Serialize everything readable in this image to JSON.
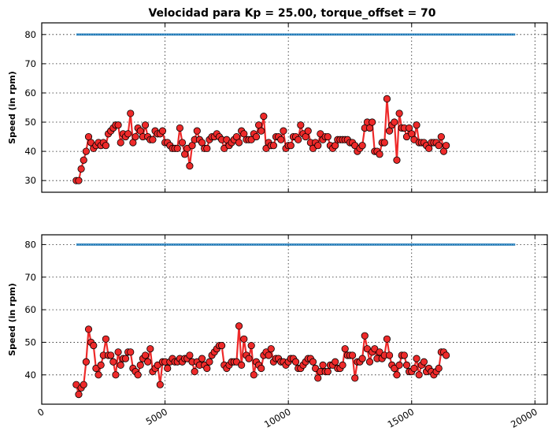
{
  "chart_data": [
    {
      "type": "line",
      "title": "Velocidad para Kp = 25.00, torque_offset = 70",
      "xlabel": "",
      "ylabel": "Speed (in rpm)",
      "xlim": [
        0,
        20500
      ],
      "ylim": [
        26,
        84
      ],
      "xticks": [
        0,
        5000,
        10000,
        15000,
        20000
      ],
      "yticks": [
        30,
        40,
        50,
        60,
        70,
        80
      ],
      "show_xtick_labels": false,
      "grid": true,
      "colors": {
        "speed": "#ee2a2a",
        "marker_edge": "#000000",
        "setpoint": "#1f77b4"
      },
      "series": [
        {
          "role": "setpoint",
          "x": [
            1400,
            19200
          ],
          "values": [
            80,
            80
          ]
        },
        {
          "role": "speed",
          "x_start": 1400,
          "x_step": 100,
          "values": [
            30,
            30,
            34,
            37,
            40,
            45,
            43,
            41,
            42,
            43,
            42,
            43,
            42,
            46,
            47,
            48,
            49,
            49,
            43,
            46,
            45,
            46,
            53,
            43,
            45,
            48,
            47,
            45,
            49,
            45,
            44,
            44,
            47,
            46,
            46,
            47,
            43,
            43,
            42,
            41,
            41,
            41,
            48,
            43,
            39,
            41,
            35,
            42,
            44,
            47,
            44,
            43,
            41,
            41,
            44,
            45,
            45,
            46,
            45,
            44,
            41,
            44,
            42,
            43,
            44,
            45,
            43,
            47,
            46,
            44,
            44,
            44,
            46,
            45,
            49,
            47,
            52,
            41,
            43,
            42,
            42,
            45,
            45,
            44,
            47,
            41,
            42,
            42,
            45,
            45,
            44,
            49,
            46,
            45,
            47,
            43,
            41,
            43,
            42,
            46,
            44,
            45,
            45,
            42,
            41,
            42,
            44,
            44,
            44,
            44,
            44,
            43,
            43,
            42,
            40,
            41,
            42,
            48,
            50,
            48,
            50,
            40,
            40,
            39,
            43,
            43,
            58,
            47,
            49,
            50,
            37,
            53,
            48,
            48,
            45,
            48,
            46,
            44,
            49,
            43,
            43,
            43,
            42,
            41,
            43,
            43,
            43,
            42,
            45,
            40,
            42
          ]
        }
      ]
    },
    {
      "type": "line",
      "title": "",
      "xlabel": "",
      "ylabel": "Speed (in rpm)",
      "xlim": [
        0,
        20500
      ],
      "ylim": [
        31,
        83
      ],
      "xticks": [
        0,
        5000,
        10000,
        15000,
        20000
      ],
      "yticks": [
        40,
        50,
        60,
        70,
        80
      ],
      "show_xtick_labels": true,
      "grid": true,
      "colors": {
        "speed": "#ee2a2a",
        "marker_edge": "#000000",
        "setpoint": "#1f77b4"
      },
      "series": [
        {
          "role": "setpoint",
          "x": [
            1400,
            19200
          ],
          "values": [
            80,
            80
          ]
        },
        {
          "role": "speed",
          "x_start": 1400,
          "x_step": 100,
          "values": [
            37,
            34,
            36,
            37,
            44,
            54,
            50,
            49,
            42,
            40,
            43,
            46,
            51,
            46,
            46,
            44,
            40,
            47,
            43,
            45,
            45,
            47,
            47,
            42,
            41,
            40,
            43,
            45,
            46,
            44,
            48,
            41,
            42,
            43,
            37,
            44,
            44,
            42,
            44,
            45,
            44,
            44,
            45,
            44,
            45,
            45,
            46,
            44,
            41,
            44,
            43,
            45,
            43,
            42,
            44,
            46,
            47,
            48,
            49,
            49,
            43,
            42,
            43,
            44,
            44,
            44,
            55,
            43,
            51,
            46,
            45,
            49,
            40,
            44,
            43,
            42,
            46,
            47,
            46,
            48,
            44,
            45,
            45,
            44,
            44,
            43,
            44,
            45,
            45,
            44,
            42,
            42,
            43,
            44,
            45,
            45,
            44,
            42,
            39,
            41,
            43,
            41,
            41,
            43,
            43,
            44,
            42,
            42,
            43,
            48,
            46,
            46,
            46,
            39,
            44,
            44,
            45,
            52,
            48,
            44,
            47,
            48,
            45,
            47,
            45,
            46,
            51,
            46,
            43,
            42,
            40,
            43,
            46,
            46,
            43,
            41,
            41,
            42,
            45,
            40,
            43,
            44,
            41,
            42,
            41,
            40,
            41,
            42,
            47,
            47,
            46
          ]
        }
      ]
    }
  ]
}
